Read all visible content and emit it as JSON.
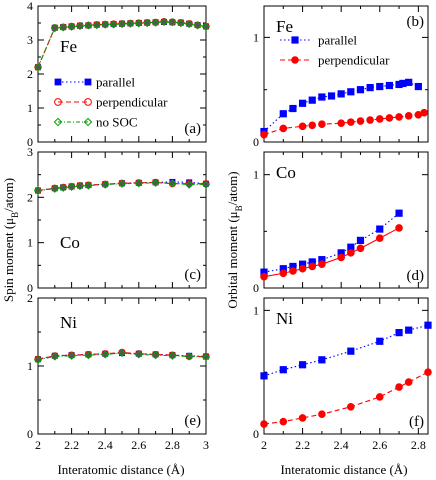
{
  "figure": {
    "left_ylabel": "Spin moment (μ",
    "left_ylabel_sub": "B",
    "left_ylabel_tail": "/atom)",
    "right_ylabel": "Orbital moment (μ",
    "right_ylabel_sub": "B",
    "right_ylabel_tail": "/atom)",
    "xlabel_left": "Interatomic distance (Å)",
    "xlabel_right": "Interatomic distance (Å)"
  },
  "colors": {
    "parallel": "#0000ff",
    "perpendicular": "#ff0000",
    "no_soc": "#00a000",
    "spin_line": "#1a1a1a",
    "fe_spin_line": "#a05020",
    "marker_gray": "#555555"
  },
  "chart_data": [
    {
      "id": "a",
      "type": "line",
      "element": "Fe",
      "panel_label": "(a)",
      "xlim": [
        2,
        3
      ],
      "ylim": [
        0,
        4
      ],
      "xticks": [
        "2",
        "2.2",
        "2.4",
        "2.6",
        "2.8",
        "3"
      ],
      "yticks": [
        "0",
        "1",
        "2",
        "3",
        "4"
      ],
      "legend": [
        {
          "key": "parallel",
          "label": "parallel"
        },
        {
          "key": "perpendicular",
          "label": "perpendicular"
        },
        {
          "key": "no_soc",
          "label": "no SOC"
        }
      ],
      "x": [
        2.0,
        2.1,
        2.15,
        2.2,
        2.25,
        2.3,
        2.35,
        2.4,
        2.45,
        2.5,
        2.55,
        2.6,
        2.65,
        2.7,
        2.75,
        2.8,
        2.85,
        2.9,
        2.95,
        3.0
      ],
      "series": [
        {
          "key": "parallel",
          "values": [
            2.2,
            3.36,
            3.38,
            3.4,
            3.42,
            3.43,
            3.45,
            3.46,
            3.47,
            3.48,
            3.49,
            3.5,
            3.51,
            3.52,
            3.53,
            3.52,
            3.51,
            3.48,
            3.44,
            3.4
          ]
        },
        {
          "key": "perpendicular",
          "values": [
            2.2,
            3.36,
            3.38,
            3.4,
            3.42,
            3.43,
            3.45,
            3.46,
            3.47,
            3.48,
            3.49,
            3.5,
            3.51,
            3.52,
            3.54,
            3.53,
            3.51,
            3.48,
            3.44,
            3.4
          ]
        },
        {
          "key": "no_soc",
          "values": [
            2.2,
            3.35,
            3.37,
            3.39,
            3.41,
            3.43,
            3.44,
            3.45,
            3.46,
            3.47,
            3.48,
            3.49,
            3.5,
            3.51,
            3.53,
            3.52,
            3.5,
            3.47,
            3.43,
            3.39
          ]
        }
      ]
    },
    {
      "id": "b",
      "type": "line",
      "element": "Fe",
      "panel_label": "(b)",
      "xlim": [
        2,
        2.85
      ],
      "ylim": [
        0,
        1.3
      ],
      "xticks": [
        "2",
        "2.2",
        "2.4",
        "2.6",
        "2.8"
      ],
      "yticks": [
        "0",
        "1"
      ],
      "legend": [
        {
          "key": "parallel",
          "label": "parallel"
        },
        {
          "key": "perpendicular",
          "label": "perpendicular"
        }
      ],
      "series": [
        {
          "key": "parallel",
          "x": [
            2.0,
            2.1,
            2.15,
            2.2,
            2.25,
            2.3,
            2.35,
            2.4,
            2.45,
            2.5,
            2.55,
            2.6,
            2.65,
            2.7,
            2.72,
            2.75,
            2.8
          ],
          "values": [
            0.1,
            0.27,
            0.32,
            0.37,
            0.4,
            0.43,
            0.44,
            0.46,
            0.48,
            0.5,
            0.52,
            0.53,
            0.54,
            0.55,
            0.56,
            0.57,
            0.53
          ]
        },
        {
          "key": "perpendicular",
          "x": [
            2.0,
            2.1,
            2.2,
            2.25,
            2.3,
            2.4,
            2.45,
            2.5,
            2.55,
            2.6,
            2.65,
            2.7,
            2.75,
            2.8,
            2.83
          ],
          "values": [
            0.07,
            0.13,
            0.15,
            0.16,
            0.17,
            0.18,
            0.19,
            0.2,
            0.21,
            0.22,
            0.23,
            0.24,
            0.25,
            0.26,
            0.28
          ]
        }
      ]
    },
    {
      "id": "c",
      "type": "line",
      "element": "Co",
      "panel_label": "(c)",
      "xlim": [
        2,
        3
      ],
      "ylim": [
        0,
        3
      ],
      "xticks": [
        "2",
        "2.2",
        "2.4",
        "2.6",
        "2.8",
        "3"
      ],
      "yticks": [
        "0",
        "1",
        "2",
        "3"
      ],
      "x": [
        2.0,
        2.1,
        2.15,
        2.2,
        2.25,
        2.3,
        2.4,
        2.5,
        2.6,
        2.7,
        2.8,
        2.9,
        3.0
      ],
      "series": [
        {
          "key": "parallel",
          "values": [
            2.15,
            2.2,
            2.22,
            2.24,
            2.26,
            2.27,
            2.29,
            2.31,
            2.32,
            2.33,
            2.34,
            2.33,
            2.3
          ]
        },
        {
          "key": "perpendicular",
          "values": [
            2.15,
            2.2,
            2.22,
            2.24,
            2.26,
            2.27,
            2.29,
            2.31,
            2.32,
            2.33,
            2.3,
            2.3,
            2.3
          ]
        },
        {
          "key": "no_soc",
          "values": [
            2.15,
            2.19,
            2.21,
            2.23,
            2.25,
            2.26,
            2.28,
            2.3,
            2.31,
            2.32,
            2.31,
            2.28,
            2.28
          ]
        }
      ]
    },
    {
      "id": "d",
      "type": "line",
      "element": "Co",
      "panel_label": "(d)",
      "xlim": [
        2,
        2.85
      ],
      "ylim": [
        0,
        1.2
      ],
      "xticks": [
        "2",
        "2.2",
        "2.4",
        "2.6",
        "2.8"
      ],
      "yticks": [
        "0",
        "1"
      ],
      "series": [
        {
          "key": "parallel",
          "x": [
            2.0,
            2.1,
            2.15,
            2.2,
            2.25,
            2.3,
            2.4,
            2.45,
            2.5,
            2.6,
            2.7
          ],
          "values": [
            0.14,
            0.17,
            0.19,
            0.21,
            0.23,
            0.25,
            0.31,
            0.36,
            0.42,
            0.52,
            0.66
          ]
        },
        {
          "key": "perpendicular",
          "x": [
            2.0,
            2.1,
            2.15,
            2.2,
            2.25,
            2.3,
            2.4,
            2.45,
            2.5,
            2.6,
            2.7
          ],
          "values": [
            0.1,
            0.13,
            0.15,
            0.17,
            0.19,
            0.21,
            0.27,
            0.31,
            0.35,
            0.44,
            0.53
          ]
        }
      ]
    },
    {
      "id": "e",
      "type": "line",
      "element": "Ni",
      "panel_label": "(e)",
      "xlim": [
        2,
        3
      ],
      "ylim": [
        0,
        2
      ],
      "xticks": [
        "2",
        "2.2",
        "2.4",
        "2.6",
        "2.8",
        "3"
      ],
      "yticks": [
        "0",
        "1",
        "2"
      ],
      "x": [
        2.0,
        2.1,
        2.2,
        2.3,
        2.4,
        2.5,
        2.6,
        2.7,
        2.8,
        2.9,
        3.0
      ],
      "series": [
        {
          "key": "parallel",
          "values": [
            1.1,
            1.15,
            1.16,
            1.17,
            1.18,
            1.19,
            1.18,
            1.17,
            1.16,
            1.15,
            1.14
          ]
        },
        {
          "key": "perpendicular",
          "values": [
            1.1,
            1.15,
            1.16,
            1.17,
            1.18,
            1.2,
            1.18,
            1.17,
            1.16,
            1.14,
            1.14
          ]
        },
        {
          "key": "no_soc",
          "values": [
            1.09,
            1.14,
            1.15,
            1.16,
            1.17,
            1.19,
            1.17,
            1.16,
            1.15,
            1.14,
            1.13
          ]
        }
      ]
    },
    {
      "id": "f",
      "type": "line",
      "element": "Ni",
      "panel_label": "(f)",
      "xlim": [
        2,
        2.85
      ],
      "ylim": [
        0,
        1.1
      ],
      "xticks": [
        "2",
        "2.2",
        "2.4",
        "2.6",
        "2.8"
      ],
      "yticks": [
        "0",
        "1"
      ],
      "series": [
        {
          "key": "parallel",
          "x": [
            2.0,
            2.1,
            2.2,
            2.3,
            2.45,
            2.6,
            2.7,
            2.75,
            2.85
          ],
          "values": [
            0.47,
            0.52,
            0.56,
            0.6,
            0.67,
            0.75,
            0.82,
            0.84,
            0.88
          ]
        },
        {
          "key": "perpendicular",
          "x": [
            2.0,
            2.1,
            2.2,
            2.3,
            2.45,
            2.6,
            2.7,
            2.75,
            2.85
          ],
          "values": [
            0.08,
            0.1,
            0.13,
            0.16,
            0.22,
            0.3,
            0.38,
            0.42,
            0.5
          ]
        }
      ]
    }
  ]
}
